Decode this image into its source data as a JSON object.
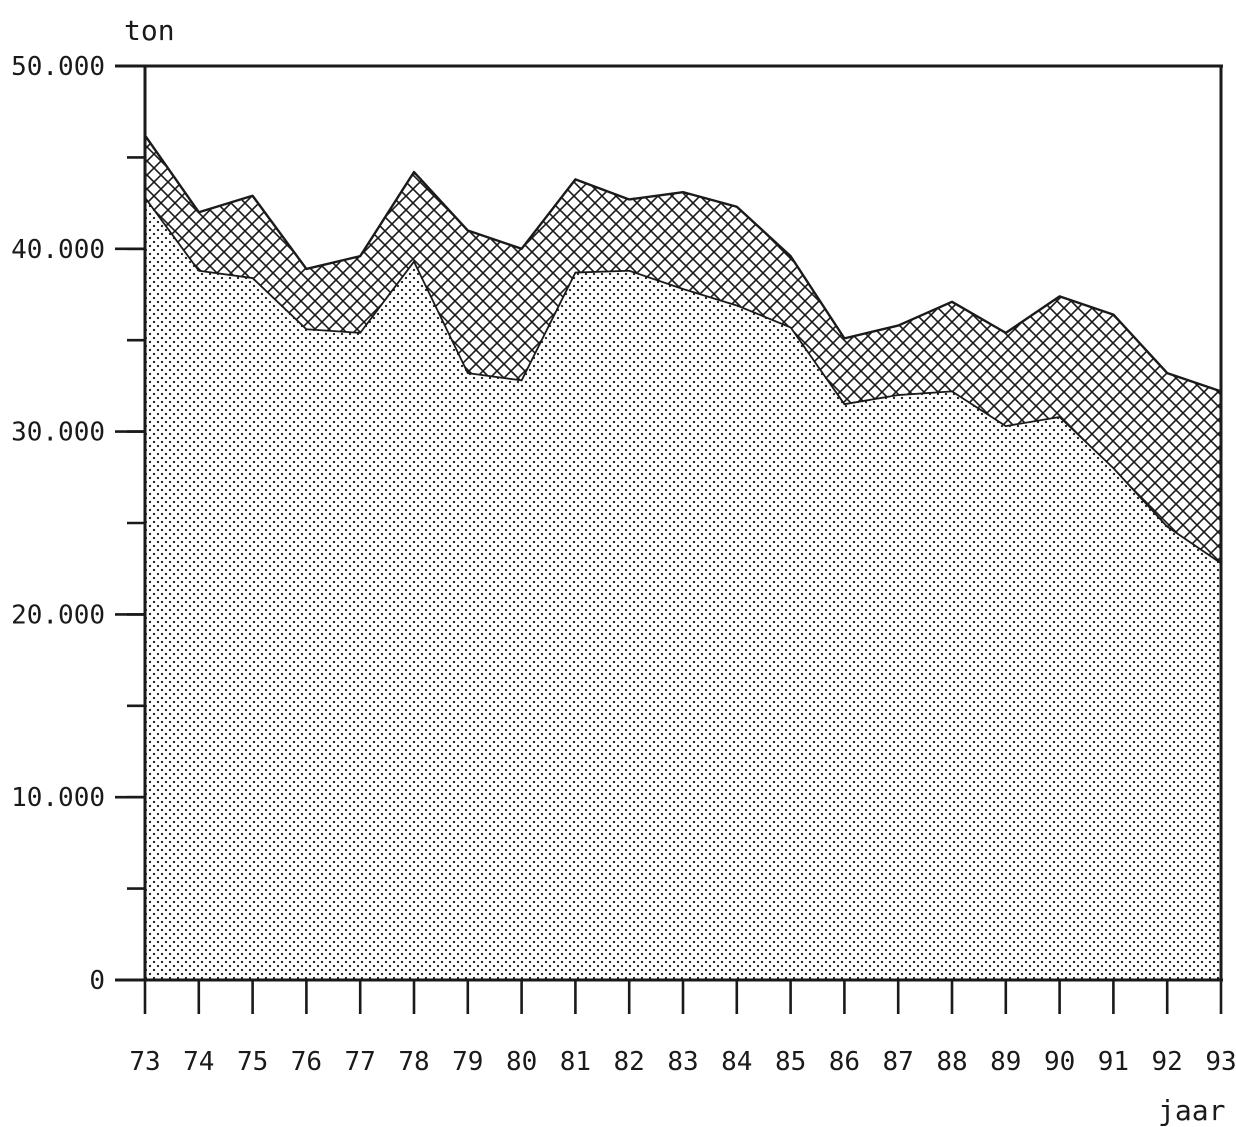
{
  "chart_data": {
    "type": "area",
    "stacked": true,
    "title": "",
    "ylabel": "ton",
    "xlabel": "jaar",
    "ylim": [
      0,
      50000
    ],
    "y_ticks": [
      {
        "value": 0,
        "label": "0"
      },
      {
        "value": 10000,
        "label": "10.000"
      },
      {
        "value": 20000,
        "label": "20.000"
      },
      {
        "value": 30000,
        "label": "30.000"
      },
      {
        "value": 40000,
        "label": "40.000"
      },
      {
        "value": 50000,
        "label": "50.000"
      }
    ],
    "y_minor_step": 5000,
    "categories": [
      "73",
      "74",
      "75",
      "76",
      "77",
      "78",
      "79",
      "80",
      "81",
      "82",
      "83",
      "84",
      "85",
      "86",
      "87",
      "88",
      "89",
      "90",
      "91",
      "92",
      "93"
    ],
    "series": [
      {
        "fill": "dots",
        "values": [
          42800,
          38800,
          38400,
          35600,
          35400,
          39300,
          33200,
          32800,
          38700,
          38800,
          37800,
          36900,
          35700,
          31500,
          32000,
          32200,
          30300,
          30800,
          28000,
          24800,
          22800
        ]
      },
      {
        "fill": "crosshatch",
        "top": [
          46200,
          42000,
          42900,
          38900,
          39600,
          44200,
          41000,
          40000,
          43800,
          42700,
          43100,
          42300,
          39600,
          35100,
          35800,
          37100,
          35400,
          37400,
          36400,
          33200,
          32200
        ]
      }
    ],
    "grid": false,
    "legend": "none",
    "colors": {
      "ink": "#1a1a1a",
      "paper": "#ffffff"
    }
  }
}
